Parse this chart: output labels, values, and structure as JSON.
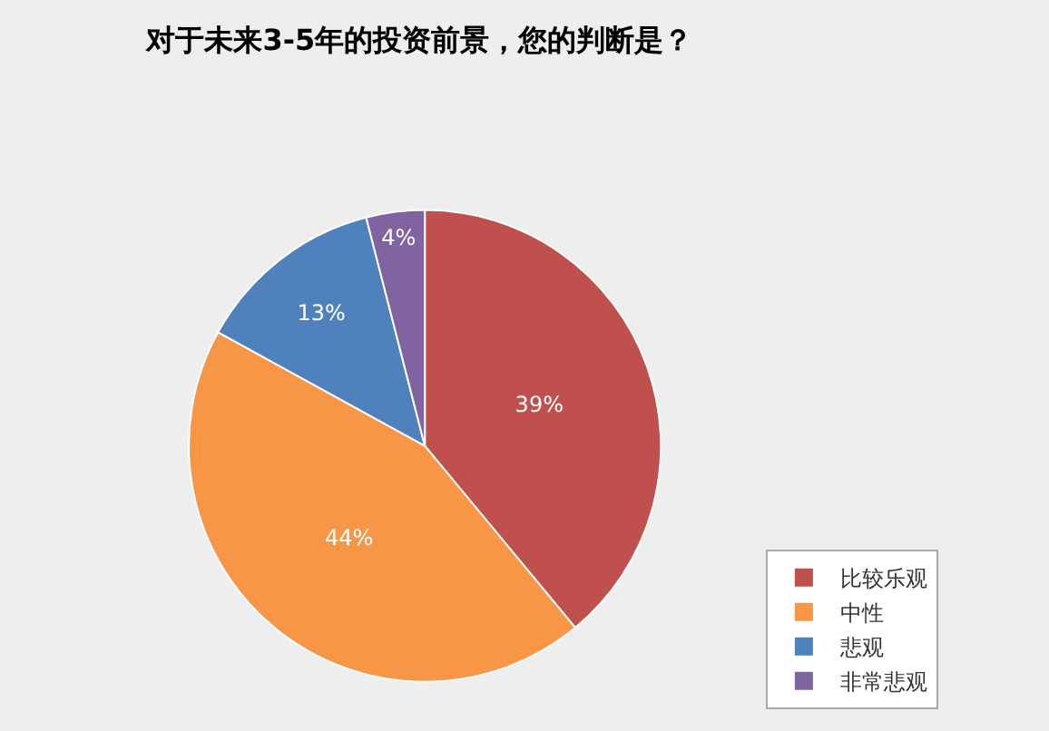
{
  "chart_data": {
    "type": "pie",
    "title": "对于未来3-5年的投资前景，您的判断是？",
    "categories": [
      "比较乐观",
      "中性",
      "悲观",
      "非常悲观"
    ],
    "values": [
      39,
      44,
      13,
      4
    ],
    "value_labels": [
      "39%",
      "44%",
      "13%",
      "4%"
    ],
    "colors": [
      "#c0504d",
      "#f79646",
      "#4f81bd",
      "#8064a2"
    ],
    "legend": "bottom right"
  }
}
